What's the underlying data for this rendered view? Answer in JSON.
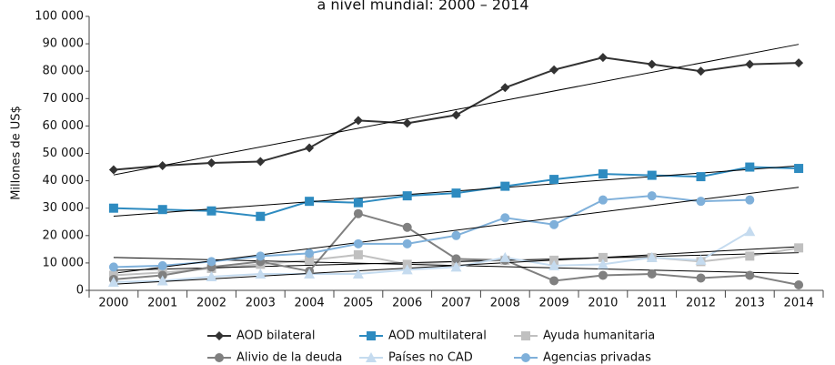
{
  "chart_data": {
    "type": "line",
    "title": "a nivel mundial: 2000 – 2014",
    "y_label": "Millones de US$",
    "categories": [
      "2000",
      "2001",
      "2002",
      "2003",
      "2004",
      "2005",
      "2006",
      "2007",
      "2008",
      "2009",
      "2010",
      "2011",
      "2012",
      "2013",
      "2014"
    ],
    "series": [
      {
        "name": "AOD bilateral",
        "color": "#333333",
        "marker": "diamond",
        "values": [
          44000,
          45500,
          46500,
          47000,
          52000,
          62000,
          61000,
          64000,
          74000,
          80500,
          85000,
          82500,
          80000,
          82500,
          83000
        ]
      },
      {
        "name": "AOD multilateral",
        "color": "#2e8bc0",
        "marker": "square",
        "values": [
          30000,
          29500,
          29000,
          27000,
          32500,
          32000,
          34500,
          35500,
          38000,
          40500,
          42500,
          42000,
          41500,
          45000,
          44500
        ]
      },
      {
        "name": "Ayuda humanitaria",
        "color": "#c0c0c0",
        "marker": "square",
        "values": [
          5500,
          6500,
          8000,
          9500,
          11000,
          13000,
          9500,
          10500,
          11000,
          11000,
          12000,
          12000,
          10500,
          12500,
          15500
        ]
      },
      {
        "name": "Alivio de la deuda",
        "color": "#808080",
        "marker": "circle",
        "values": [
          4000,
          5500,
          8500,
          10500,
          7000,
          28000,
          23000,
          11500,
          11000,
          3500,
          5500,
          6000,
          4500,
          5500,
          2000
        ]
      },
      {
        "name": "Países no CAD",
        "color": "#c5dbef",
        "marker": "triangle",
        "values": [
          3000,
          3500,
          5000,
          6000,
          6000,
          6000,
          7500,
          8500,
          12000,
          9000,
          9500,
          12000,
          11000,
          21500,
          null
        ]
      },
      {
        "name": "Agencias privadas",
        "color": "#7fb0da",
        "marker": "circle",
        "values": [
          8500,
          9000,
          10500,
          12500,
          13500,
          17000,
          17000,
          20000,
          26500,
          24000,
          33000,
          34500,
          32500,
          33000,
          null
        ]
      }
    ],
    "ylim": [
      0,
      100000
    ],
    "yticks": [
      0,
      {
        "value": 10000,
        "label": "10 000"
      },
      {
        "value": 20000,
        "label": "20 000"
      },
      {
        "value": 30000,
        "label": "30 000"
      },
      {
        "value": 40000,
        "label": "40 000"
      },
      {
        "value": 50000,
        "label": "50 000"
      },
      {
        "value": 60000,
        "label": "60 000"
      },
      {
        "value": 70000,
        "label": "70 000"
      },
      {
        "value": 80000,
        "label": "80 000"
      },
      {
        "value": 90000,
        "label": "90 000"
      },
      {
        "value": 100000,
        "label": "100 000"
      }
    ],
    "trend_lines": true
  }
}
